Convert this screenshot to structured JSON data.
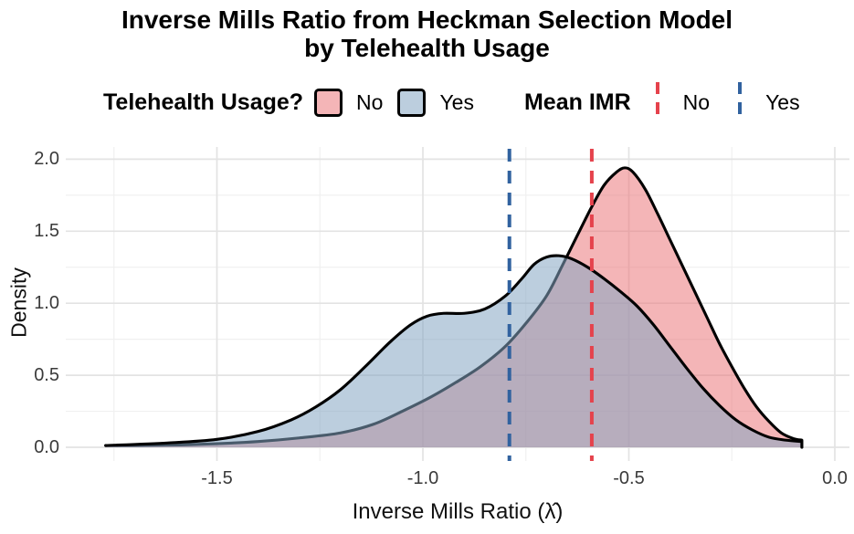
{
  "title": {
    "line1": "Inverse Mills Ratio from Heckman Selection Model",
    "line2": "by Telehealth Usage"
  },
  "legend": {
    "fill_group": {
      "title": "Telehealth Usage?",
      "items": [
        {
          "label": "No",
          "color": "#F4B5B7"
        },
        {
          "label": "Yes",
          "color": "#BCCEDE"
        }
      ]
    },
    "line_group": {
      "title": "Mean IMR",
      "items": [
        {
          "label": "No",
          "color": "#E5424C"
        },
        {
          "label": "Yes",
          "color": "#31629F"
        }
      ]
    }
  },
  "chart_data": {
    "type": "area",
    "variant": "kernel-density-overlay",
    "title": "Inverse Mills Ratio from Heckman Selection Model by Telehealth Usage",
    "xlabel": "Inverse Mills Ratio (λ̂)",
    "ylabel": "Density",
    "xlim": [
      -1.87,
      0.04
    ],
    "ylim": [
      0,
      2.18
    ],
    "grid": true,
    "legend_position": "top",
    "x_ticks": [
      {
        "value": -1.5,
        "label": "-1.5"
      },
      {
        "value": -1.0,
        "label": "-1.0"
      },
      {
        "value": -0.5,
        "label": "-0.5"
      },
      {
        "value": 0.0,
        "label": "0.0"
      }
    ],
    "y_ticks": [
      {
        "value": 0.0,
        "label": "0.0"
      },
      {
        "value": 0.5,
        "label": "0.5"
      },
      {
        "value": 1.0,
        "label": "1.0"
      },
      {
        "value": 1.5,
        "label": "1.5"
      },
      {
        "value": 2.0,
        "label": "2.0"
      }
    ],
    "x_minor": [
      -1.75,
      -1.25,
      -0.75,
      -0.25
    ],
    "y_minor": [
      0.25,
      0.75,
      1.25,
      1.75
    ],
    "series": [
      {
        "name": "No",
        "fill": "rgba(235,120,124,0.55)",
        "stroke": "#000000",
        "points": [
          [
            -1.77,
            0.012
          ],
          [
            -1.62,
            0.015
          ],
          [
            -1.5,
            0.025
          ],
          [
            -1.4,
            0.04
          ],
          [
            -1.3,
            0.065
          ],
          [
            -1.2,
            0.1
          ],
          [
            -1.12,
            0.16
          ],
          [
            -1.05,
            0.25
          ],
          [
            -0.98,
            0.35
          ],
          [
            -0.92,
            0.45
          ],
          [
            -0.86,
            0.56
          ],
          [
            -0.8,
            0.7
          ],
          [
            -0.75,
            0.86
          ],
          [
            -0.7,
            1.05
          ],
          [
            -0.66,
            1.27
          ],
          [
            -0.62,
            1.5
          ],
          [
            -0.59,
            1.67
          ],
          [
            -0.56,
            1.82
          ],
          [
            -0.53,
            1.91
          ],
          [
            -0.51,
            1.94
          ],
          [
            -0.49,
            1.91
          ],
          [
            -0.46,
            1.79
          ],
          [
            -0.43,
            1.62
          ],
          [
            -0.4,
            1.44
          ],
          [
            -0.37,
            1.26
          ],
          [
            -0.34,
            1.08
          ],
          [
            -0.31,
            0.9
          ],
          [
            -0.28,
            0.72
          ],
          [
            -0.25,
            0.56
          ],
          [
            -0.22,
            0.41
          ],
          [
            -0.19,
            0.28
          ],
          [
            -0.16,
            0.18
          ],
          [
            -0.13,
            0.1
          ],
          [
            -0.1,
            0.06
          ],
          [
            -0.08,
            0.05
          ]
        ]
      },
      {
        "name": "Yes",
        "fill": "rgba(133,166,195,0.55)",
        "stroke": "#000000",
        "points": [
          [
            -1.77,
            0.012
          ],
          [
            -1.62,
            0.03
          ],
          [
            -1.5,
            0.055
          ],
          [
            -1.4,
            0.11
          ],
          [
            -1.32,
            0.19
          ],
          [
            -1.26,
            0.28
          ],
          [
            -1.2,
            0.4
          ],
          [
            -1.14,
            0.56
          ],
          [
            -1.08,
            0.73
          ],
          [
            -1.03,
            0.85
          ],
          [
            -0.99,
            0.91
          ],
          [
            -0.95,
            0.93
          ],
          [
            -0.9,
            0.93
          ],
          [
            -0.85,
            0.96
          ],
          [
            -0.8,
            1.05
          ],
          [
            -0.76,
            1.17
          ],
          [
            -0.73,
            1.27
          ],
          [
            -0.7,
            1.32
          ],
          [
            -0.67,
            1.33
          ],
          [
            -0.64,
            1.31
          ],
          [
            -0.6,
            1.25
          ],
          [
            -0.56,
            1.17
          ],
          [
            -0.52,
            1.08
          ],
          [
            -0.48,
            0.98
          ],
          [
            -0.44,
            0.85
          ],
          [
            -0.4,
            0.7
          ],
          [
            -0.36,
            0.55
          ],
          [
            -0.32,
            0.41
          ],
          [
            -0.28,
            0.29
          ],
          [
            -0.24,
            0.19
          ],
          [
            -0.2,
            0.12
          ],
          [
            -0.16,
            0.07
          ],
          [
            -0.12,
            0.05
          ],
          [
            -0.08,
            0.04
          ]
        ]
      }
    ],
    "mean_lines": [
      {
        "name": "No",
        "x": -0.59,
        "color": "#E5424C"
      },
      {
        "name": "Yes",
        "x": -0.79,
        "color": "#31629F"
      }
    ]
  }
}
